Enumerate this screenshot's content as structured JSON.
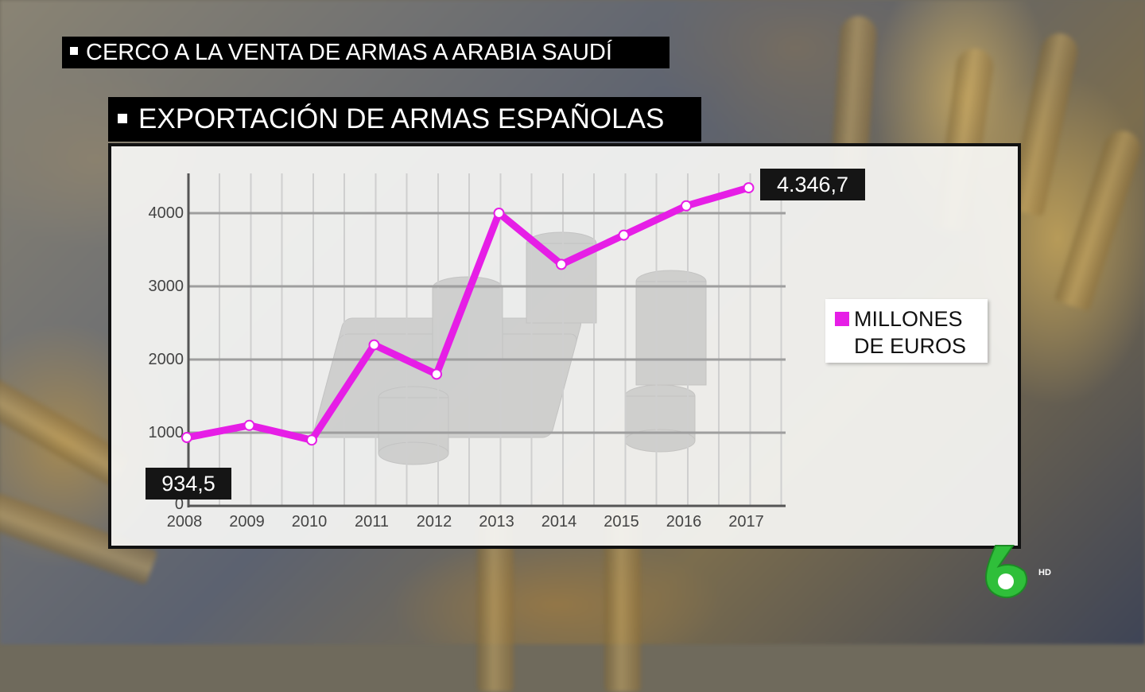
{
  "broadcast": {
    "top_strip": "CERCO A LA VENTA DE ARMAS A ARABIA SAUDÍ",
    "title_strip": "EXPORTACIÓN DE ARMAS ESPAÑOLAS",
    "channel_badge": "HD"
  },
  "colors": {
    "line": "#e61ee6",
    "grid": "#9e9e9e",
    "label_bg": "#151515"
  },
  "chart_data": {
    "type": "line",
    "title": "EXPORTACIÓN DE ARMAS ESPAÑOLAS",
    "categories": [
      "2008",
      "2009",
      "2010",
      "2011",
      "2012",
      "2013",
      "2014",
      "2015",
      "2016",
      "2017"
    ],
    "series": [
      {
        "name": "MILLONES DE EUROS",
        "values": [
          934.5,
          1100,
          900,
          2200,
          1800,
          4000,
          3300,
          3700,
          4100,
          4346.7
        ]
      }
    ],
    "yticks": [
      "0",
      "1000",
      "2000",
      "3000",
      "4000"
    ],
    "ylim": [
      0,
      4500
    ],
    "grid": true,
    "legend": "right",
    "annotations": {
      "first": "934,5",
      "last": "4.346,7"
    }
  }
}
